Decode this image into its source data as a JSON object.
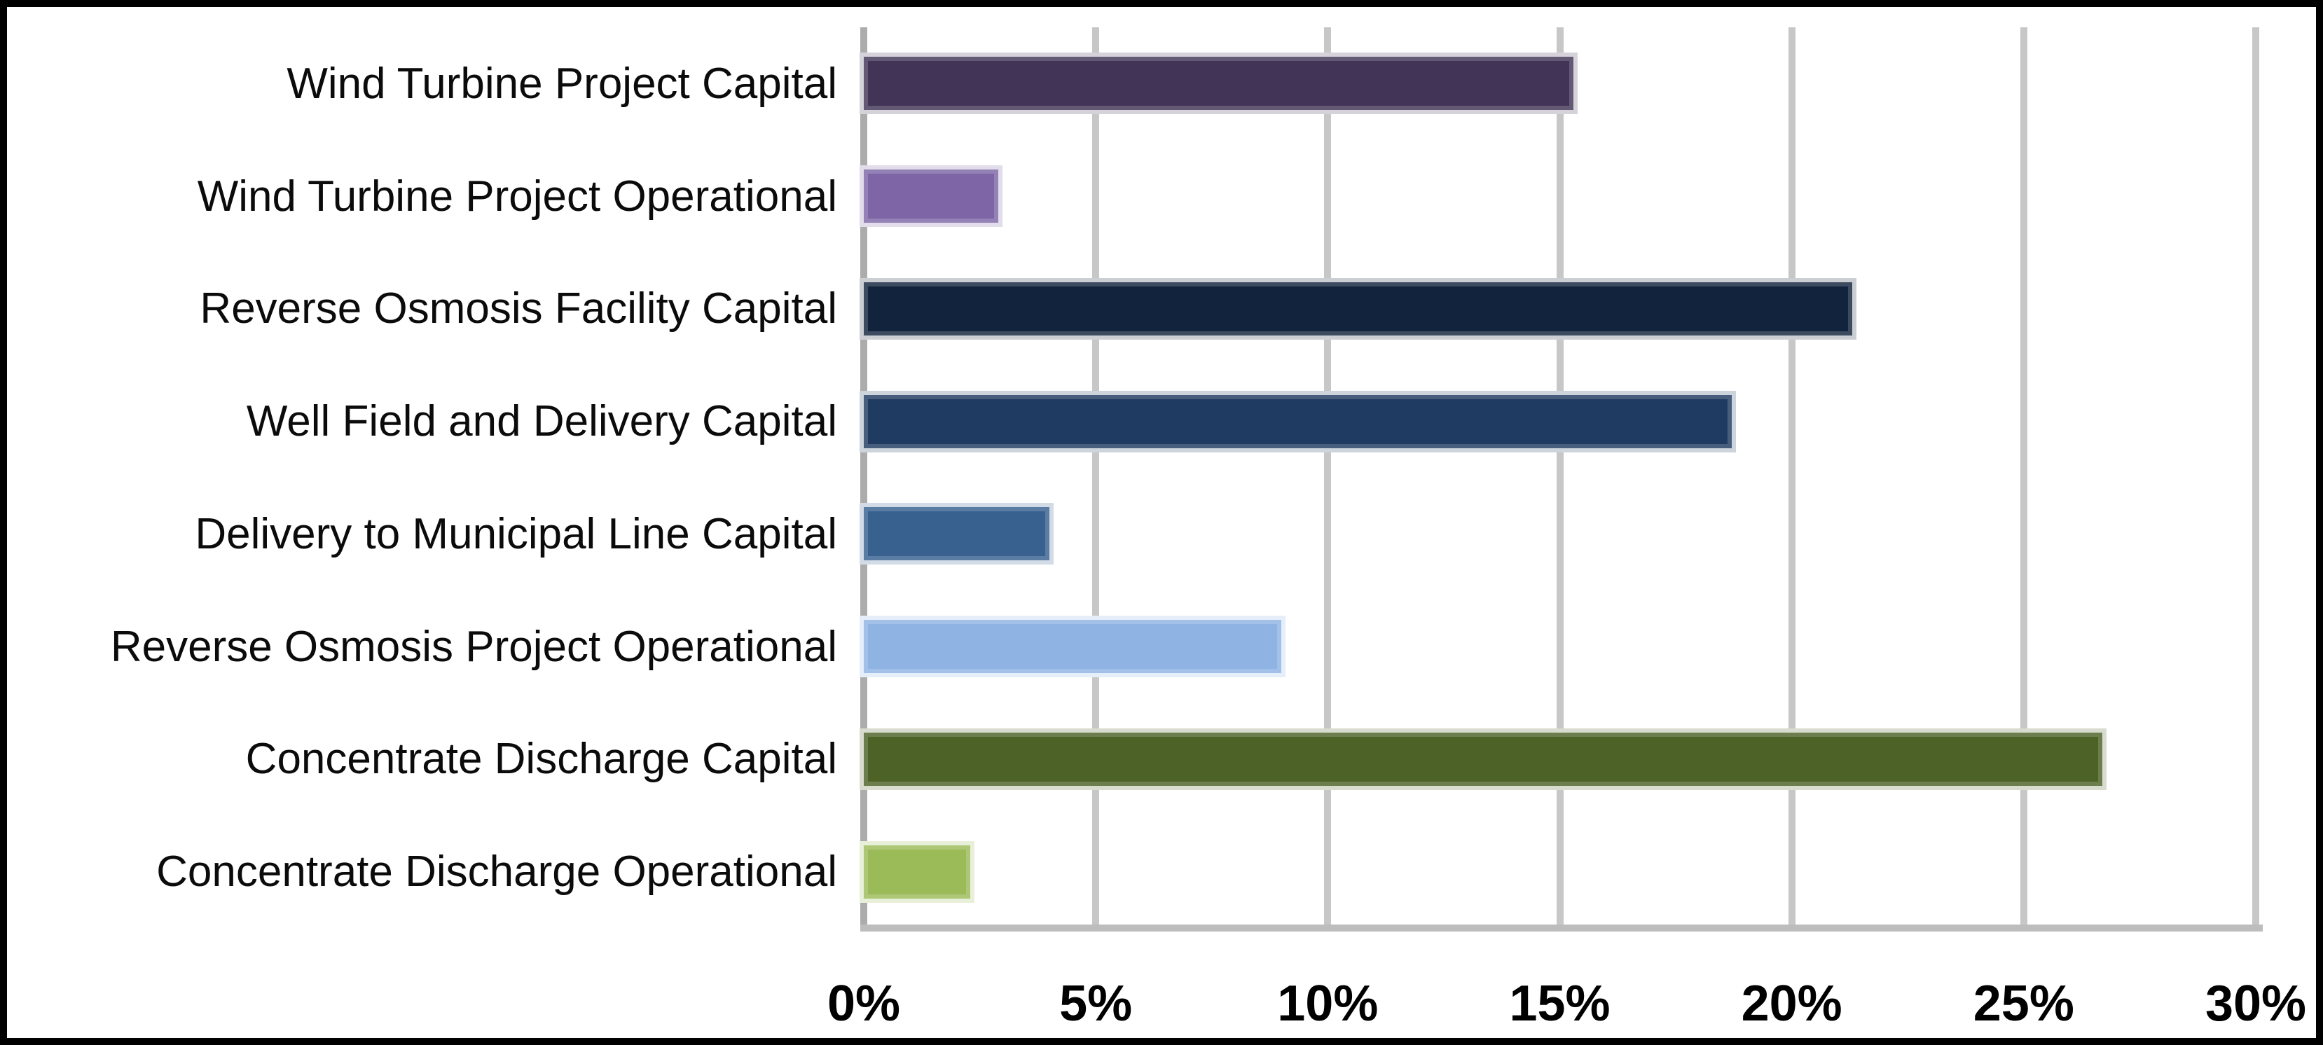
{
  "chart_data": {
    "type": "bar",
    "orientation": "horizontal",
    "title": "",
    "xlabel": "",
    "ylabel": "",
    "categories": [
      "Wind Turbine Project Capital",
      "Wind Turbine Project Operational",
      "Reverse Osmosis Facility Capital",
      "Well Field and Delivery Capital",
      "Delivery to Municipal Line Capital",
      "Reverse Osmosis Project Operational",
      "Concentrate Discharge Capital",
      "Concentrate Discharge Operational"
    ],
    "values": [
      15.3,
      2.9,
      21.3,
      18.7,
      4.0,
      9.0,
      26.7,
      2.3
    ],
    "unit": "%",
    "bar_colors": [
      "#413457",
      "#7D65A6",
      "#12243D",
      "#1F3B61",
      "#38618F",
      "#8FB3E3",
      "#4D6227",
      "#9BBB59"
    ],
    "xlim": [
      0,
      30
    ],
    "x_tick_values": [
      0,
      5,
      10,
      15,
      20,
      25,
      30
    ],
    "x_tick_labels": [
      "0%",
      "5%",
      "10%",
      "15%",
      "20%",
      "25%",
      "30%"
    ],
    "grid": true,
    "legend": false,
    "colors": {
      "gridline": "#C7C7C7",
      "zero_line": "#ACACAC",
      "axis_line": "#BDBDBD",
      "frame_border": "#000000",
      "background": "#FFFFFF",
      "label_text": "#0B0B0B",
      "tick_text": "#000000"
    }
  }
}
